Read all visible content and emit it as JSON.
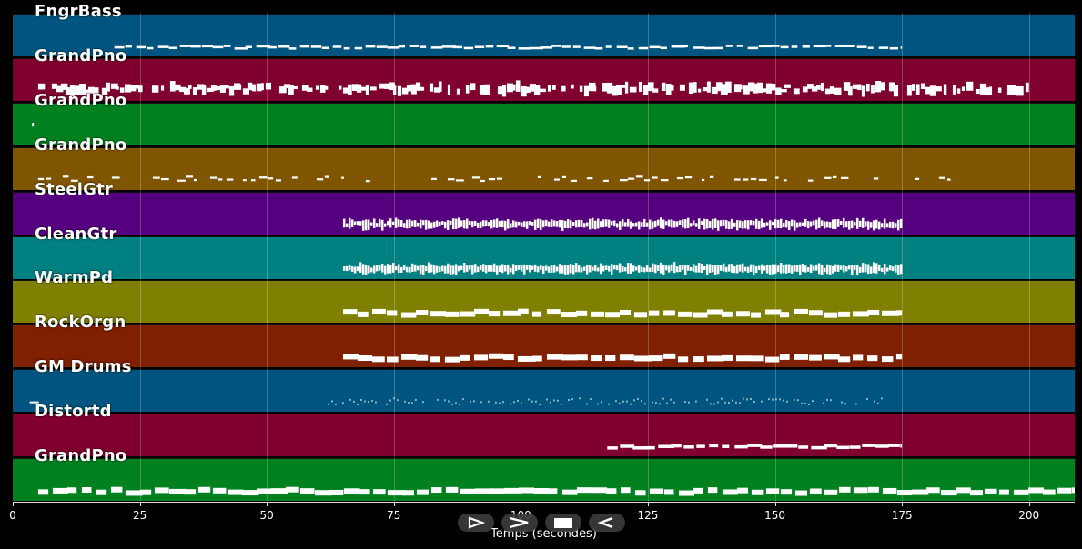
{
  "tracks": [
    {
      "name": "FngrBass",
      "color": "#005580",
      "density": "line-thin",
      "start": 20,
      "end": 175
    },
    {
      "name": "GrandPno",
      "color": "#7f002f",
      "density": "dense",
      "start": 5,
      "end": 200
    },
    {
      "name": "GrandPno",
      "color": "#00801f",
      "density": "single",
      "start": 2,
      "end": 2.5
    },
    {
      "name": "GrandPno",
      "color": "#805500",
      "density": "sparse",
      "start": 5,
      "end": 187
    },
    {
      "name": "SteelGtr",
      "color": "#55007f",
      "density": "block",
      "start": 65,
      "end": 175
    },
    {
      "name": "CleanGtr",
      "color": "#008080",
      "density": "block",
      "start": 65,
      "end": 175
    },
    {
      "name": "WarmPd",
      "color": "#7f7f00",
      "density": "line-thick",
      "start": 65,
      "end": 175
    },
    {
      "name": "RockOrgn",
      "color": "#7f2000",
      "density": "line-thick",
      "start": 65,
      "end": 175
    },
    {
      "name": "GM Drums",
      "color": "#005580",
      "density": "dots",
      "start": 62,
      "end": 171
    },
    {
      "name": "Distortd",
      "color": "#7f002f",
      "density": "line-mid",
      "start": 117,
      "end": 175
    },
    {
      "name": "GrandPno",
      "color": "#00801f",
      "density": "line-thick",
      "start": 5,
      "end": 209
    }
  ],
  "axis": {
    "title": "Temps (secondes)",
    "min": 0,
    "max": 209,
    "ticks": [
      "0",
      "25",
      "50",
      "75",
      "100",
      "125",
      "150",
      "175",
      "200"
    ],
    "tick_values": [
      0,
      25,
      50,
      75,
      100,
      125,
      150,
      175,
      200
    ]
  },
  "transport": [
    {
      "name": "play-icon",
      "label": "play"
    },
    {
      "name": "fast-forward-icon",
      "label": "forward"
    },
    {
      "name": "stop-icon",
      "label": "stop"
    },
    {
      "name": "rewind-icon",
      "label": "back"
    }
  ]
}
